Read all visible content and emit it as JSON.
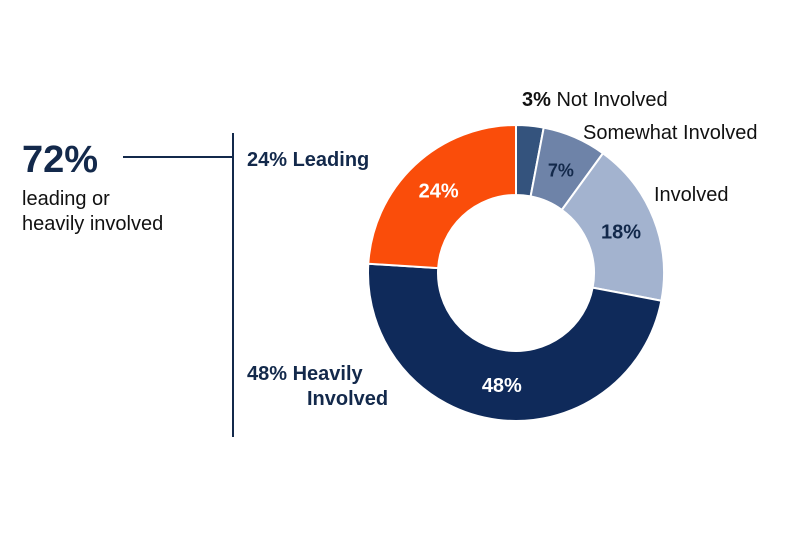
{
  "callout": {
    "value": "72%",
    "line1": "leading or",
    "line2": "heavily involved"
  },
  "groups": {
    "leading": "24% Leading",
    "heavily_line1": "48% Heavily",
    "heavily_line2": "Involved"
  },
  "outer_labels": {
    "not_involved_pct": "3%",
    "not_involved_text": "Not Involved",
    "somewhat_text": "Somewhat Involved",
    "involved_text": "Involved"
  },
  "colors": {
    "leading": "#fa4d0a",
    "heavily_involved": "#0f2a5a",
    "involved": "#a3b3cf",
    "somewhat_involved": "#6e83a8",
    "not_involved": "#34537d",
    "label_dark": "#13294b",
    "label_light_text": "#ffffff"
  },
  "chart_data": {
    "type": "pie",
    "donut": true,
    "start": "top",
    "direction": "clockwise",
    "slices": [
      {
        "name": "Not Involved",
        "value": 3,
        "label": "",
        "color": "not_involved"
      },
      {
        "name": "Somewhat Involved",
        "value": 7,
        "label": "7%",
        "color": "somewhat_involved",
        "label_color": "label_dark"
      },
      {
        "name": "Involved",
        "value": 18,
        "label": "18%",
        "color": "involved",
        "label_color": "label_dark"
      },
      {
        "name": "Heavily Involved",
        "value": 48,
        "label": "48%",
        "color": "heavily_involved",
        "label_color": "label_light_text"
      },
      {
        "name": "Leading",
        "value": 24,
        "label": "24%",
        "color": "leading",
        "label_color": "label_light_text"
      }
    ]
  }
}
